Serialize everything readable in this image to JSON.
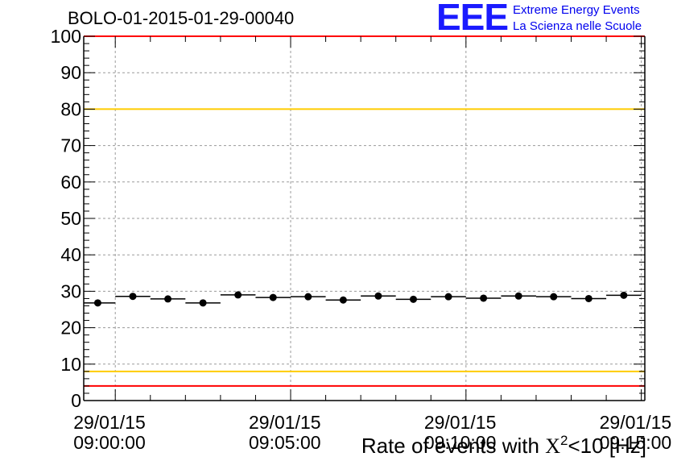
{
  "header": {
    "run_title": "BOLO-01-2015-01-29-00040"
  },
  "logo": {
    "mark": "EEE",
    "line1": "Extreme Energy Events",
    "line2": "La Scienza nelle Scuole",
    "color": "#0000ee"
  },
  "chart_data": {
    "type": "scatter",
    "xlabel_parts": {
      "before": "Rate of events with ",
      "chi": "X",
      "sup": "2",
      "after": "<10 [Hz]"
    },
    "ylim": [
      0,
      100
    ],
    "yticks": [
      0,
      10,
      20,
      30,
      40,
      50,
      60,
      70,
      80,
      90,
      100
    ],
    "grid": true,
    "xticks": [
      {
        "date": "29/01/15",
        "time": "09:00:00",
        "minutes": 0
      },
      {
        "date": "29/01/15",
        "time": "09:05:00",
        "minutes": 5
      },
      {
        "date": "29/01/15",
        "time": "09:10:00",
        "minutes": 10
      },
      {
        "date": "29/01/15",
        "time": "09:15:00",
        "minutes": 15
      }
    ],
    "xrange_minutes": [
      -0.9,
      15.1
    ],
    "bin_width_minutes": 1,
    "points": [
      {
        "t_minutes": -0.5,
        "rate": 26.8
      },
      {
        "t_minutes": 0.5,
        "rate": 28.6
      },
      {
        "t_minutes": 1.5,
        "rate": 27.9
      },
      {
        "t_minutes": 2.5,
        "rate": 26.8
      },
      {
        "t_minutes": 3.5,
        "rate": 29.0
      },
      {
        "t_minutes": 4.5,
        "rate": 28.3
      },
      {
        "t_minutes": 5.5,
        "rate": 28.5
      },
      {
        "t_minutes": 6.5,
        "rate": 27.6
      },
      {
        "t_minutes": 7.5,
        "rate": 28.7
      },
      {
        "t_minutes": 8.5,
        "rate": 27.8
      },
      {
        "t_minutes": 9.5,
        "rate": 28.5
      },
      {
        "t_minutes": 10.5,
        "rate": 28.1
      },
      {
        "t_minutes": 11.5,
        "rate": 28.7
      },
      {
        "t_minutes": 12.5,
        "rate": 28.5
      },
      {
        "t_minutes": 13.5,
        "rate": 28.0
      },
      {
        "t_minutes": 14.5,
        "rate": 28.9
      }
    ],
    "reference_lines": [
      {
        "y": 100,
        "color": "#ff0000"
      },
      {
        "y": 80,
        "color": "#ffcc00"
      },
      {
        "y": 8,
        "color": "#ffcc00"
      },
      {
        "y": 4,
        "color": "#ff0000"
      }
    ]
  }
}
